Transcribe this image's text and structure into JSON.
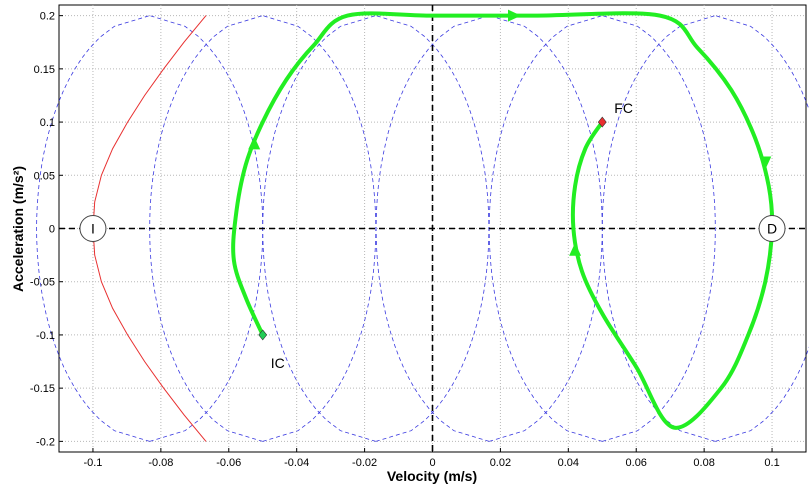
{
  "chart_data": {
    "type": "line",
    "title": "",
    "xlabel": "Velocity (m/s)",
    "ylabel": "Acceleration (m/s²)",
    "xlim": [
      -0.11,
      0.11
    ],
    "ylim": [
      -0.21,
      0.21
    ],
    "xticks": [
      -0.1,
      -0.08,
      -0.06,
      -0.04,
      -0.02,
      0,
      0.02,
      0.04,
      0.06,
      0.08,
      0.1
    ],
    "xtick_labels": [
      "-0.1",
      "-0.08",
      "-0.06",
      "-0.04",
      "-0.02",
      "0",
      "0.02",
      "0.04",
      "0.06",
      "0.08",
      "0.1"
    ],
    "yticks": [
      -0.2,
      -0.15,
      -0.1,
      -0.05,
      0,
      0.05,
      0.1,
      0.15,
      0.2
    ],
    "ytick_labels": [
      "-0.2",
      "-0.15",
      "-0.1",
      "-0.05",
      "0",
      "0.05",
      "0.1",
      "0.15",
      "0.2"
    ],
    "grid": true,
    "colors": {
      "trajectory": "#22ee22",
      "boundary": "#e83030",
      "family": "#3a3ae0",
      "axes": "#000000"
    },
    "boundary_curve": {
      "x": [
        -0.0667,
        -0.0732,
        -0.0792,
        -0.0848,
        -0.0898,
        -0.0942,
        -0.0975,
        -0.0995,
        -0.1,
        -0.0995,
        -0.0975,
        -0.0942,
        -0.0898,
        -0.0848,
        -0.0792,
        -0.0732,
        -0.0667
      ],
      "y": [
        0.2,
        0.175,
        0.15,
        0.125,
        0.1,
        0.075,
        0.05,
        0.025,
        0,
        -0.025,
        -0.05,
        -0.075,
        -0.1,
        -0.125,
        -0.15,
        -0.175,
        -0.2
      ]
    },
    "curve_family": {
      "centers": [
        -0.0833,
        -0.05,
        -0.0167,
        0.0167,
        0.05,
        0.0833
      ],
      "half_width": 0.0333,
      "y_range": [
        -0.2,
        0.2
      ]
    },
    "trajectory": {
      "x": [
        -0.05,
        -0.055,
        -0.0585,
        -0.058,
        -0.055,
        -0.05,
        -0.043,
        -0.035,
        -0.025,
        0.0,
        0.03,
        0.067,
        0.078,
        0.088,
        0.095,
        0.099,
        0.1,
        0.098,
        0.093,
        0.085,
        0.071,
        0.06,
        0.05,
        0.044,
        0.0415,
        0.042,
        0.045,
        0.05
      ],
      "y": [
        -0.1,
        -0.065,
        -0.03,
        0.01,
        0.06,
        0.1,
        0.14,
        0.172,
        0.2,
        0.2,
        0.2,
        0.2,
        0.17,
        0.13,
        0.085,
        0.04,
        0.0,
        -0.05,
        -0.1,
        -0.15,
        -0.187,
        -0.13,
        -0.08,
        -0.04,
        0.0,
        0.04,
        0.075,
        0.1
      ]
    },
    "arrows": [
      {
        "x": 0.024,
        "y": 0.2,
        "dir": "right"
      },
      {
        "x": -0.0525,
        "y": 0.08,
        "dir": "up"
      },
      {
        "x": 0.098,
        "y": 0.062,
        "dir": "down"
      },
      {
        "x": 0.042,
        "y": -0.02,
        "dir": "up"
      }
    ],
    "markers": [
      {
        "label": "IC",
        "x": -0.05,
        "y": -0.1,
        "color": "#22cc55"
      },
      {
        "label": "FC",
        "x": 0.05,
        "y": 0.1,
        "color": "#e83030"
      }
    ],
    "circle_labels": [
      {
        "label": "I",
        "x": -0.1,
        "y": 0
      },
      {
        "label": "D",
        "x": 0.1,
        "y": 0
      }
    ]
  }
}
